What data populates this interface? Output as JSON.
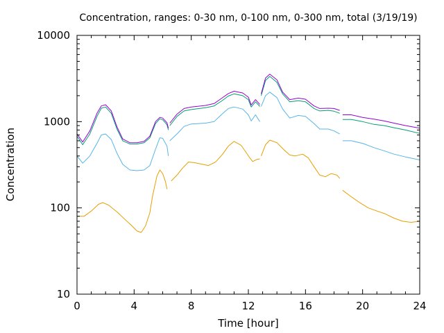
{
  "chart_data": {
    "type": "line",
    "title": "Concentration, ranges: 0-30 nm, 0-100 nm, 0-300 nm, total (3/19/19)",
    "xlabel": "Time [hour]",
    "ylabel": "Concentration",
    "xlim": [
      0,
      24
    ],
    "ylim": [
      10,
      10000
    ],
    "yscale": "log",
    "grid": false,
    "legend": "none",
    "x_ticks": [
      0,
      4,
      8,
      12,
      16,
      20,
      24
    ],
    "x_tick_labels": [
      "0",
      "4",
      "8",
      "12",
      "16",
      "20",
      "24"
    ],
    "y_ticks": [
      10,
      100,
      1000,
      10000
    ],
    "y_tick_labels": [
      "10",
      "100",
      "1000",
      "10000"
    ],
    "series": [
      {
        "color": "#e69f00",
        "segments": [
          [
            [
              0.0,
              80
            ],
            [
              0.5,
              80
            ],
            [
              1.0,
              92
            ],
            [
              1.5,
              110
            ],
            [
              1.8,
              115
            ],
            [
              2.2,
              108
            ],
            [
              2.8,
              90
            ],
            [
              3.3,
              75
            ],
            [
              3.8,
              63
            ],
            [
              4.2,
              54
            ],
            [
              4.5,
              52
            ],
            [
              4.8,
              62
            ],
            [
              5.1,
              88
            ],
            [
              5.3,
              140
            ],
            [
              5.6,
              235
            ],
            [
              5.8,
              275
            ],
            [
              6.0,
              250
            ],
            [
              6.2,
              200
            ],
            [
              6.3,
              165
            ]
          ],
          [
            [
              6.6,
              205
            ],
            [
              7.0,
              240
            ],
            [
              7.4,
              290
            ],
            [
              7.8,
              340
            ],
            [
              8.2,
              335
            ],
            [
              8.8,
              320
            ],
            [
              9.2,
              310
            ],
            [
              9.7,
              340
            ],
            [
              10.2,
              420
            ],
            [
              10.6,
              520
            ],
            [
              11.0,
              590
            ],
            [
              11.5,
              530
            ],
            [
              11.8,
              450
            ],
            [
              12.1,
              380
            ],
            [
              12.3,
              345
            ],
            [
              12.6,
              365
            ],
            [
              12.8,
              370
            ]
          ],
          [
            [
              12.9,
              400
            ],
            [
              13.2,
              540
            ],
            [
              13.5,
              610
            ],
            [
              14.0,
              570
            ],
            [
              14.5,
              470
            ],
            [
              14.9,
              410
            ],
            [
              15.3,
              400
            ],
            [
              15.8,
              420
            ],
            [
              16.2,
              380
            ],
            [
              16.6,
              300
            ],
            [
              17.0,
              240
            ],
            [
              17.4,
              230
            ],
            [
              17.8,
              250
            ],
            [
              18.2,
              240
            ],
            [
              18.4,
              220
            ]
          ],
          [
            [
              18.6,
              160
            ],
            [
              19.2,
              135
            ],
            [
              19.8,
              115
            ],
            [
              20.4,
              100
            ],
            [
              21.0,
              92
            ],
            [
              21.6,
              85
            ],
            [
              22.2,
              76
            ],
            [
              22.8,
              70
            ],
            [
              23.4,
              68
            ],
            [
              24.0,
              70
            ]
          ]
        ]
      },
      {
        "color": "#56b4e9",
        "segments": [
          [
            [
              0.0,
              400
            ],
            [
              0.4,
              330
            ],
            [
              0.9,
              400
            ],
            [
              1.4,
              560
            ],
            [
              1.7,
              700
            ],
            [
              2.0,
              720
            ],
            [
              2.4,
              620
            ],
            [
              2.8,
              430
            ],
            [
              3.2,
              320
            ],
            [
              3.7,
              275
            ],
            [
              4.2,
              270
            ],
            [
              4.7,
              275
            ],
            [
              5.1,
              310
            ],
            [
              5.5,
              480
            ],
            [
              5.8,
              650
            ],
            [
              6.0,
              640
            ],
            [
              6.3,
              520
            ],
            [
              6.4,
              400
            ]
          ],
          [
            [
              6.5,
              600
            ],
            [
              7.0,
              720
            ],
            [
              7.5,
              880
            ],
            [
              8.0,
              940
            ],
            [
              9.0,
              960
            ],
            [
              9.6,
              1000
            ],
            [
              10.1,
              1200
            ],
            [
              10.6,
              1420
            ],
            [
              11.0,
              1480
            ],
            [
              11.6,
              1400
            ],
            [
              12.0,
              1200
            ],
            [
              12.2,
              1020
            ],
            [
              12.5,
              1200
            ],
            [
              12.8,
              1000
            ]
          ],
          [
            [
              12.9,
              1500
            ],
            [
              13.2,
              2000
            ],
            [
              13.5,
              2200
            ],
            [
              14.0,
              1900
            ],
            [
              14.4,
              1400
            ],
            [
              14.9,
              1100
            ],
            [
              15.5,
              1180
            ],
            [
              16.0,
              1150
            ],
            [
              16.6,
              950
            ],
            [
              17.0,
              820
            ],
            [
              17.6,
              820
            ],
            [
              18.0,
              780
            ],
            [
              18.4,
              720
            ]
          ],
          [
            [
              18.6,
              600
            ],
            [
              19.2,
              600
            ],
            [
              20.0,
              560
            ],
            [
              20.8,
              500
            ],
            [
              21.5,
              460
            ],
            [
              22.2,
              420
            ],
            [
              23.0,
              390
            ],
            [
              24.0,
              360
            ]
          ]
        ]
      },
      {
        "color": "#009e73",
        "segments": [
          [
            [
              0.0,
              680
            ],
            [
              0.4,
              540
            ],
            [
              0.9,
              720
            ],
            [
              1.4,
              1150
            ],
            [
              1.7,
              1430
            ],
            [
              2.0,
              1480
            ],
            [
              2.4,
              1250
            ],
            [
              2.8,
              820
            ],
            [
              3.2,
              600
            ],
            [
              3.7,
              550
            ],
            [
              4.2,
              550
            ],
            [
              4.7,
              570
            ],
            [
              5.1,
              650
            ],
            [
              5.5,
              950
            ],
            [
              5.8,
              1080
            ],
            [
              6.0,
              1050
            ],
            [
              6.3,
              920
            ],
            [
              6.4,
              800
            ]
          ],
          [
            [
              6.5,
              900
            ],
            [
              7.0,
              1150
            ],
            [
              7.5,
              1330
            ],
            [
              8.0,
              1380
            ],
            [
              9.0,
              1450
            ],
            [
              9.6,
              1520
            ],
            [
              10.1,
              1720
            ],
            [
              10.6,
              1980
            ],
            [
              11.0,
              2100
            ],
            [
              11.6,
              2000
            ],
            [
              12.0,
              1800
            ],
            [
              12.2,
              1480
            ],
            [
              12.5,
              1700
            ],
            [
              12.8,
              1500
            ]
          ],
          [
            [
              12.9,
              2000
            ],
            [
              13.2,
              3000
            ],
            [
              13.5,
              3350
            ],
            [
              14.0,
              2850
            ],
            [
              14.4,
              2100
            ],
            [
              14.9,
              1700
            ],
            [
              15.5,
              1750
            ],
            [
              16.0,
              1700
            ],
            [
              16.6,
              1420
            ],
            [
              17.0,
              1330
            ],
            [
              17.6,
              1350
            ],
            [
              18.0,
              1320
            ],
            [
              18.4,
              1250
            ]
          ],
          [
            [
              18.6,
              1060
            ],
            [
              19.2,
              1060
            ],
            [
              20.0,
              1000
            ],
            [
              20.8,
              930
            ],
            [
              21.5,
              900
            ],
            [
              22.2,
              850
            ],
            [
              23.0,
              800
            ],
            [
              24.0,
              730
            ]
          ]
        ]
      },
      {
        "color": "#9400d3",
        "segments": [
          [
            [
              0.0,
              720
            ],
            [
              0.4,
              580
            ],
            [
              0.9,
              780
            ],
            [
              1.4,
              1250
            ],
            [
              1.7,
              1520
            ],
            [
              2.0,
              1570
            ],
            [
              2.4,
              1330
            ],
            [
              2.8,
              870
            ],
            [
              3.2,
              630
            ],
            [
              3.7,
              570
            ],
            [
              4.2,
              570
            ],
            [
              4.7,
              590
            ],
            [
              5.1,
              680
            ],
            [
              5.5,
              1000
            ],
            [
              5.8,
              1120
            ],
            [
              6.0,
              1100
            ],
            [
              6.3,
              970
            ],
            [
              6.4,
              840
            ]
          ],
          [
            [
              6.5,
              960
            ],
            [
              7.0,
              1220
            ],
            [
              7.5,
              1420
            ],
            [
              8.0,
              1480
            ],
            [
              9.0,
              1540
            ],
            [
              9.6,
              1620
            ],
            [
              10.1,
              1850
            ],
            [
              10.6,
              2120
            ],
            [
              11.0,
              2250
            ],
            [
              11.6,
              2150
            ],
            [
              12.0,
              1920
            ],
            [
              12.2,
              1560
            ],
            [
              12.5,
              1800
            ],
            [
              12.8,
              1580
            ]
          ],
          [
            [
              12.9,
              2100
            ],
            [
              13.2,
              3200
            ],
            [
              13.5,
              3550
            ],
            [
              14.0,
              3050
            ],
            [
              14.4,
              2200
            ],
            [
              14.9,
              1800
            ],
            [
              15.5,
              1870
            ],
            [
              16.0,
              1820
            ],
            [
              16.6,
              1520
            ],
            [
              17.0,
              1420
            ],
            [
              17.6,
              1430
            ],
            [
              18.0,
              1420
            ],
            [
              18.4,
              1350
            ]
          ],
          [
            [
              18.6,
              1200
            ],
            [
              19.2,
              1200
            ],
            [
              20.0,
              1120
            ],
            [
              20.8,
              1070
            ],
            [
              21.5,
              1020
            ],
            [
              22.2,
              960
            ],
            [
              23.0,
              900
            ],
            [
              24.0,
              840
            ]
          ]
        ]
      }
    ]
  }
}
